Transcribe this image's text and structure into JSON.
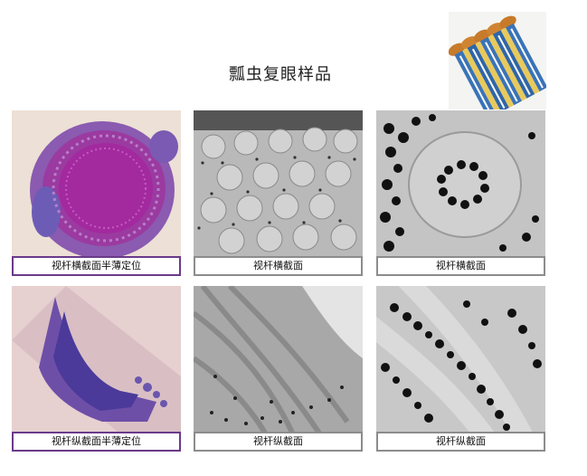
{
  "title": "瓢虫复眼样品",
  "diagram": {
    "icon": "ommatidia-diagram-icon"
  },
  "panels": [
    {
      "caption": "视杆横截面半薄定位",
      "style": "purple"
    },
    {
      "caption": "视杆横截面",
      "style": "gray"
    },
    {
      "caption": "视杆横截面",
      "style": "gray"
    },
    {
      "caption": "视杆纵截面半薄定位",
      "style": "purple"
    },
    {
      "caption": "视杆纵截面",
      "style": "gray"
    },
    {
      "caption": "视杆纵截面",
      "style": "gray"
    }
  ],
  "colors": {
    "accent_border": "#6b3a8a",
    "gray_border": "#8c8c8c"
  }
}
